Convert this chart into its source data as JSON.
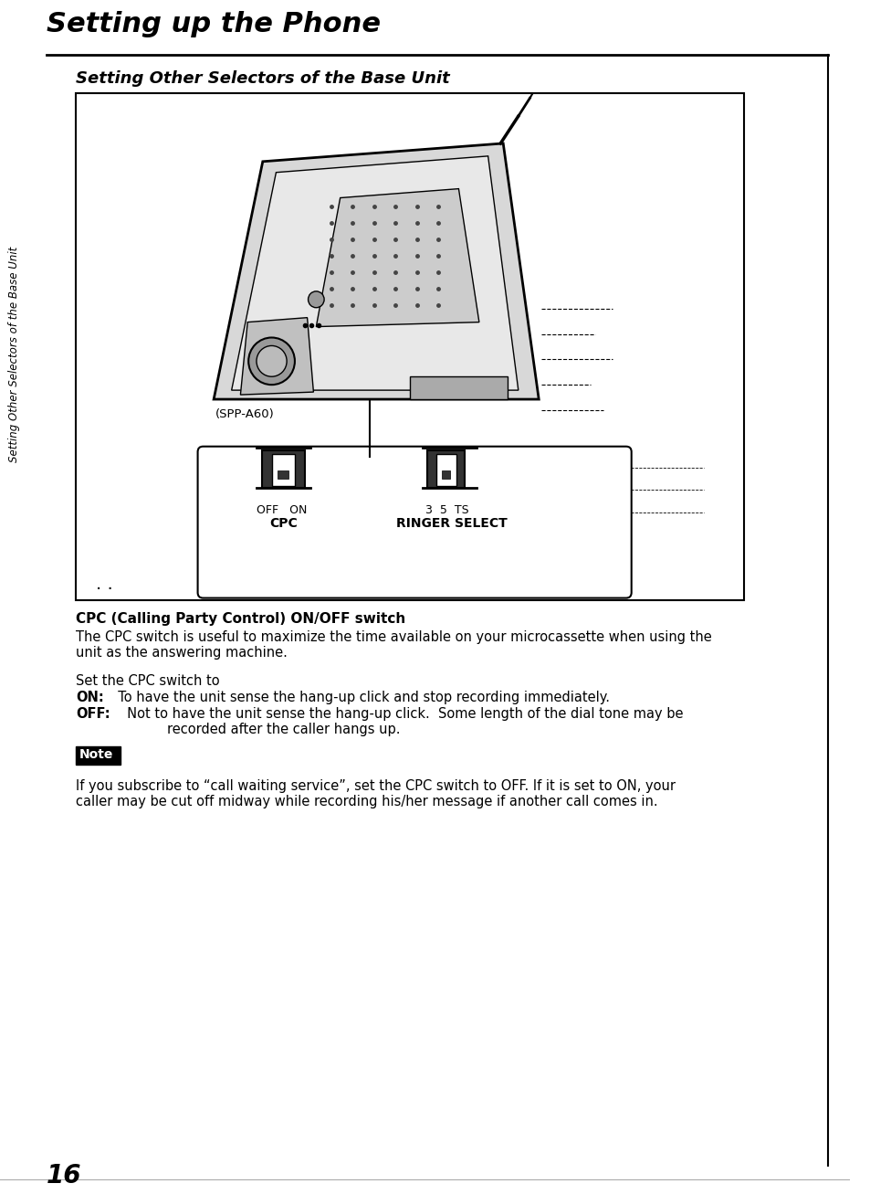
{
  "title": "Setting up the Phone",
  "subtitle": "Setting Other Selectors of the Base Unit",
  "bg_color": "#ffffff",
  "sidebar_text": "Setting Other Selectors of the Base Unit",
  "page_number": "16",
  "cpc_heading": "CPC (Calling Party Control) ON/OFF switch",
  "cpc_body1": "The CPC switch is useful to maximize the time available on your microcassette when using the",
  "cpc_body2": "unit as the answering machine.",
  "set_switch": "Set the CPC switch to",
  "on_label": "ON:",
  "on_text": "  To have the unit sense the hang-up click and stop recording immediately.",
  "off_label": "OFF:",
  "off_text1": "  Not to have the unit sense the hang-up click.  Some length of the dial tone may be",
  "off_text2": "        recorded after the caller hangs up.",
  "note_box_text": "Note",
  "note_body1": "If you subscribe to “call waiting service”, set the CPC switch to OFF. If it is set to ON, your",
  "note_body2": "caller may be cut off midway while recording his/her message if another call comes in.",
  "diagram_label_cpc": "CPC",
  "diagram_label_ringer": "RINGER SELECT",
  "diagram_label_off_on": "OFF   ON",
  "diagram_label_3_5_ts": "3  5  TS",
  "diagram_spp": "(SPP-A60)"
}
